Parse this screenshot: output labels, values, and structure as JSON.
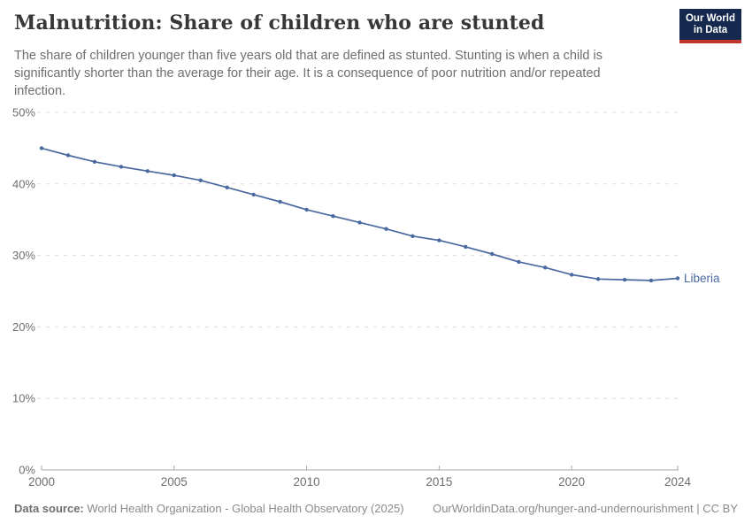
{
  "header": {
    "title": "Malnutrition: Share of children who are stunted",
    "subtitle_lines": [
      "The share of children younger than five years old that are defined as stunted. Stunting is when a child is",
      "significantly shorter than the average for their age. It is a consequence of poor nutrition and/or repeated",
      "infection."
    ],
    "logo": {
      "line1": "Our World",
      "line2": "in Data"
    }
  },
  "chart_data": {
    "type": "line",
    "title": "Malnutrition: Share of children who are stunted",
    "xlabel": "",
    "ylabel": "",
    "xlim": [
      2000,
      2024
    ],
    "ylim": [
      0,
      50
    ],
    "grid": "horizontal-dashed",
    "legend_position": "end-of-line",
    "x_ticks": [
      {
        "value": 2000,
        "label": "2000"
      },
      {
        "value": 2005,
        "label": "2005"
      },
      {
        "value": 2010,
        "label": "2010"
      },
      {
        "value": 2015,
        "label": "2015"
      },
      {
        "value": 2020,
        "label": "2020"
      },
      {
        "value": 2024,
        "label": "2024"
      }
    ],
    "y_ticks": [
      {
        "value": 0,
        "label": "0%"
      },
      {
        "value": 10,
        "label": "10%"
      },
      {
        "value": 20,
        "label": "20%"
      },
      {
        "value": 30,
        "label": "30%"
      },
      {
        "value": 40,
        "label": "40%"
      },
      {
        "value": 50,
        "label": "50%"
      }
    ],
    "series": [
      {
        "name": "Liberia",
        "color": "#4a69a0",
        "x": [
          2000,
          2001,
          2002,
          2003,
          2004,
          2005,
          2006,
          2007,
          2008,
          2009,
          2010,
          2011,
          2012,
          2013,
          2014,
          2015,
          2016,
          2017,
          2018,
          2019,
          2020,
          2021,
          2022,
          2023,
          2024
        ],
        "values": [
          45.0,
          44.0,
          43.1,
          42.4,
          41.8,
          41.2,
          40.5,
          39.5,
          38.5,
          37.5,
          36.4,
          35.5,
          34.6,
          33.7,
          32.7,
          32.1,
          31.2,
          30.2,
          29.1,
          28.3,
          27.3,
          26.7,
          26.6,
          26.5,
          26.8
        ]
      }
    ],
    "colors": {
      "grid": "#dcdcdc",
      "axis": "#a8a8a8",
      "tick_label": "#6e6e6e"
    }
  },
  "footer": {
    "source_label": "Data source:",
    "source_text": "World Health Organization - Global Health Observatory (2025)",
    "link_text": "OurWorldinData.org/hunger-and-undernourishment | CC BY"
  }
}
